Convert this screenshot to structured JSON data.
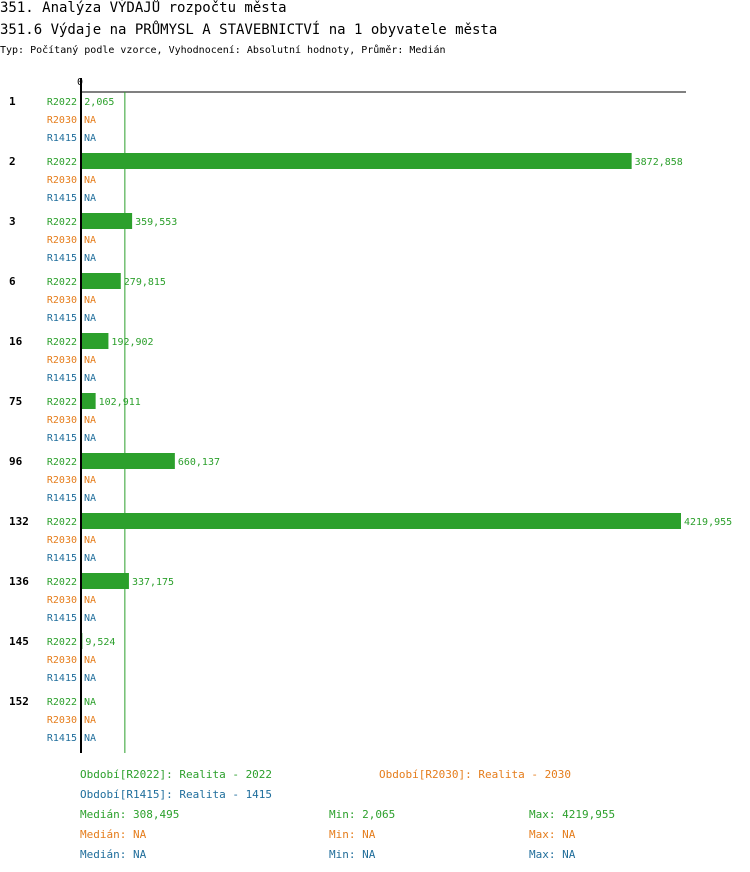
{
  "header": {
    "title": "351. Analýza VÝDAJŮ rozpočtu města",
    "subtitle": "351.6 Výdaje na PRŮMYSL A STAVEBNICTVÍ na 1 obyvatele města",
    "info": "Typ: Počítaný podle vzorce, Vyhodnocení: Absolutní hodnoty, Průměr: Medián"
  },
  "chart_data": {
    "type": "bar",
    "orientation": "horizontal",
    "x_tick": "0",
    "categories": [
      "1",
      "2",
      "3",
      "6",
      "16",
      "75",
      "96",
      "132",
      "136",
      "145",
      "152"
    ],
    "series": [
      {
        "name": "R2022",
        "color": "#2ca02c",
        "values": [
          2.065,
          3872.858,
          359.553,
          279.815,
          192.902,
          102.911,
          660.137,
          4219.955,
          337.175,
          9.524,
          null
        ],
        "labels": [
          "2,065",
          "3872,858",
          "359,553",
          "279,815",
          "192,902",
          "102,911",
          "660,137",
          "4219,955",
          "337,175",
          "9,524",
          "NA"
        ]
      },
      {
        "name": "R2030",
        "color": "#e57d1c",
        "values": [
          null,
          null,
          null,
          null,
          null,
          null,
          null,
          null,
          null,
          null,
          null
        ],
        "labels": [
          "NA",
          "NA",
          "NA",
          "NA",
          "NA",
          "NA",
          "NA",
          "NA",
          "NA",
          "NA",
          "NA"
        ]
      },
      {
        "name": "R1415",
        "color": "#1f6e9c",
        "values": [
          null,
          null,
          null,
          null,
          null,
          null,
          null,
          null,
          null,
          null,
          null
        ],
        "labels": [
          "NA",
          "NA",
          "NA",
          "NA",
          "NA",
          "NA",
          "NA",
          "NA",
          "NA",
          "NA",
          "NA"
        ]
      }
    ],
    "xlim": [
      0,
      4219.955
    ],
    "median_line": 308.495
  },
  "legend": {
    "periods": [
      {
        "text": "Období[R2022]: Realita - 2022",
        "color": "#2ca02c"
      },
      {
        "text": "Období[R2030]: Realita - 2030",
        "color": "#e57d1c"
      },
      {
        "text": "Období[R1415]: Realita - 1415",
        "color": "#1f6e9c"
      }
    ],
    "stats": [
      {
        "color": "#2ca02c",
        "median": "Medián: 308,495",
        "min": "Min: 2,065",
        "max": "Max: 4219,955"
      },
      {
        "color": "#e57d1c",
        "median": "Medián: NA",
        "min": "Min: NA",
        "max": "Max: NA"
      },
      {
        "color": "#1f6e9c",
        "median": "Medián: NA",
        "min": "Min: NA",
        "max": "Max: NA"
      }
    ]
  }
}
